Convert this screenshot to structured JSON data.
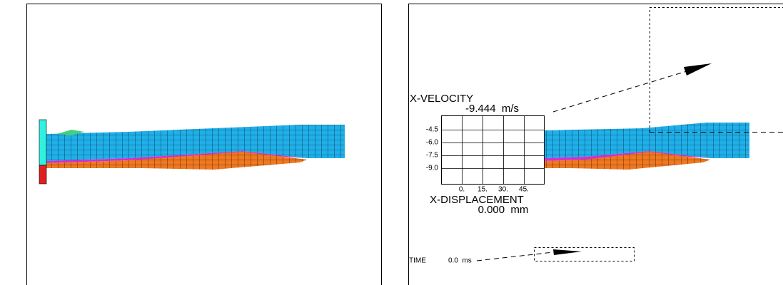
{
  "velocity_plot": {
    "y_label": "X-VELOCITY",
    "y_value": "-9.444  m/s",
    "yticks": [
      "-4.5",
      "-6.0",
      "-7.5",
      "-9.0"
    ],
    "xticks": [
      "0.",
      "15.",
      "30.",
      "45."
    ],
    "x_label": "X-DISPLACEMENT",
    "x_value": "0.000  mm"
  },
  "time": {
    "label": "TIME",
    "value": "0.0  ms"
  }
}
